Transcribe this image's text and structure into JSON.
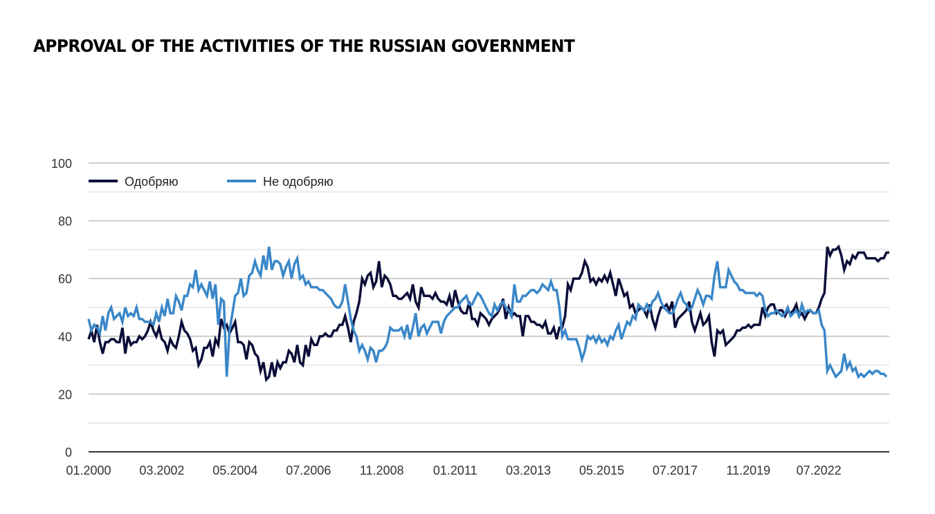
{
  "title": "APPROVAL OF THE ACTIVITIES OF THE RUSSIAN GOVERNMENT",
  "chart_data": {
    "type": "line",
    "title": "APPROVAL OF THE ACTIVITIES OF THE RUSSIAN GOVERNMENT",
    "xlabel": "",
    "ylabel": "",
    "ylim": [
      0,
      100
    ],
    "y_ticks": [
      0,
      20,
      40,
      60,
      80,
      100
    ],
    "grid": true,
    "legend_position": "top-left",
    "x_tick_labels": [
      "01.2000",
      "03.2002",
      "05.2004",
      "07.2006",
      "11.2008",
      "01.2011",
      "03.2013",
      "05.2015",
      "07.2017",
      "11.2019",
      "07.2022"
    ],
    "points_per_tick": 26,
    "series": [
      {
        "name": "Одобряю",
        "color": "#0b0d38",
        "values": [
          39,
          42,
          38,
          44,
          38,
          34,
          38,
          38,
          39,
          39,
          38,
          38,
          43,
          34,
          40,
          37,
          38,
          38,
          40,
          39,
          40,
          42,
          45,
          42,
          40,
          43,
          39,
          38,
          35,
          39,
          37,
          36,
          40,
          45,
          42,
          41,
          39,
          35,
          36,
          30,
          32,
          36,
          36,
          38,
          33,
          39,
          37,
          46,
          43,
          44,
          41,
          43,
          45,
          38,
          38,
          37,
          32,
          38,
          37,
          34,
          33,
          28,
          31,
          25,
          26,
          31,
          26,
          31,
          29,
          31,
          31,
          35,
          34,
          31,
          37,
          31,
          30,
          37,
          33,
          39,
          37,
          37,
          40,
          40,
          41,
          40,
          40,
          42,
          42,
          44,
          44,
          47,
          43,
          38,
          45,
          48,
          52,
          60,
          58,
          61,
          62,
          57,
          59,
          66,
          57,
          61,
          60,
          58,
          54,
          54,
          53,
          53,
          54,
          55,
          53,
          58,
          52,
          50,
          57,
          54,
          54,
          54,
          53,
          55,
          53,
          52,
          52,
          51,
          54,
          50,
          56,
          52,
          49,
          48,
          48,
          52,
          46,
          46,
          44,
          48,
          47,
          46,
          44,
          46,
          47,
          48,
          50,
          53,
          46,
          50,
          47,
          48,
          47,
          47,
          40,
          47,
          47,
          45,
          45,
          44,
          44,
          43,
          45,
          41,
          41,
          43,
          39,
          43,
          43,
          47,
          58,
          56,
          60,
          60,
          60,
          62,
          66,
          64,
          59,
          60,
          58,
          60,
          59,
          61,
          59,
          62,
          58,
          54,
          60,
          57,
          54,
          55,
          50,
          51,
          48,
          49,
          50,
          49,
          47,
          51,
          46,
          43,
          47,
          50,
          50,
          51,
          49,
          52,
          43,
          46,
          47,
          48,
          49,
          52,
          45,
          42,
          45,
          48,
          44,
          45,
          47,
          38,
          33,
          42,
          41,
          42,
          37,
          38,
          39,
          40,
          42,
          42,
          43,
          43,
          44,
          43,
          44,
          44,
          44,
          50,
          47,
          50,
          51,
          51,
          48,
          49,
          49,
          47,
          49,
          48,
          49,
          51,
          47,
          48,
          46,
          48,
          49,
          48,
          48,
          50,
          53,
          55,
          71,
          68,
          70,
          70,
          71,
          68,
          63,
          66,
          65,
          68,
          67,
          69,
          69,
          69,
          67,
          67,
          67,
          67,
          66,
          67,
          67,
          69,
          69
        ]
      },
      {
        "name": "Не одобряю",
        "color": "#3a87c8",
        "values": [
          46,
          42,
          44,
          43,
          41,
          47,
          42,
          48,
          50,
          46,
          47,
          48,
          45,
          50,
          47,
          48,
          47,
          50,
          46,
          46,
          45,
          45,
          45,
          44,
          48,
          45,
          50,
          47,
          53,
          48,
          48,
          54,
          52,
          49,
          54,
          54,
          58,
          57,
          63,
          56,
          58,
          56,
          54,
          59,
          53,
          58,
          44,
          53,
          52,
          26,
          42,
          48,
          54,
          55,
          60,
          54,
          55,
          61,
          62,
          66,
          63,
          61,
          68,
          63,
          71,
          63,
          66,
          66,
          65,
          61,
          64,
          66,
          60,
          65,
          67,
          60,
          61,
          58,
          59,
          57,
          57,
          57,
          56,
          56,
          55,
          54,
          53,
          51,
          50,
          50,
          52,
          58,
          52,
          46,
          42,
          40,
          35,
          37,
          35,
          32,
          36,
          35,
          31,
          35,
          35,
          36,
          38,
          43,
          42,
          42,
          42,
          43,
          40,
          44,
          39,
          43,
          48,
          40,
          43,
          44,
          41,
          43,
          45,
          45,
          45,
          41,
          45,
          47,
          48,
          49,
          50,
          50,
          52,
          53,
          54,
          51,
          51,
          53,
          55,
          54,
          52,
          50,
          48,
          47,
          51,
          49,
          51,
          52,
          50,
          49,
          47,
          58,
          52,
          52,
          54,
          54,
          55,
          56,
          56,
          55,
          56,
          58,
          57,
          56,
          59,
          56,
          56,
          50,
          40,
          42,
          39,
          39,
          39,
          39,
          36,
          32,
          35,
          40,
          39,
          40,
          38,
          40,
          38,
          39,
          37,
          40,
          39,
          42,
          44,
          39,
          42,
          45,
          44,
          47,
          46,
          51,
          50,
          49,
          51,
          49,
          52,
          53,
          55,
          52,
          50,
          49,
          48,
          48,
          50,
          53,
          55,
          52,
          51,
          49,
          50,
          53,
          56,
          54,
          51,
          54,
          54,
          53,
          61,
          66,
          57,
          57,
          57,
          63,
          61,
          59,
          58,
          56,
          56,
          55,
          55,
          55,
          55,
          54,
          55,
          54,
          49,
          47,
          48,
          48,
          49,
          48,
          47,
          48,
          50,
          47,
          48,
          49,
          47,
          51,
          48,
          49,
          49,
          48,
          48,
          49,
          44,
          42,
          28,
          30,
          28,
          26,
          27,
          28,
          34,
          29,
          31,
          28,
          29,
          26,
          27,
          26,
          27,
          28,
          27,
          28,
          28,
          27,
          27,
          26
        ]
      }
    ]
  }
}
